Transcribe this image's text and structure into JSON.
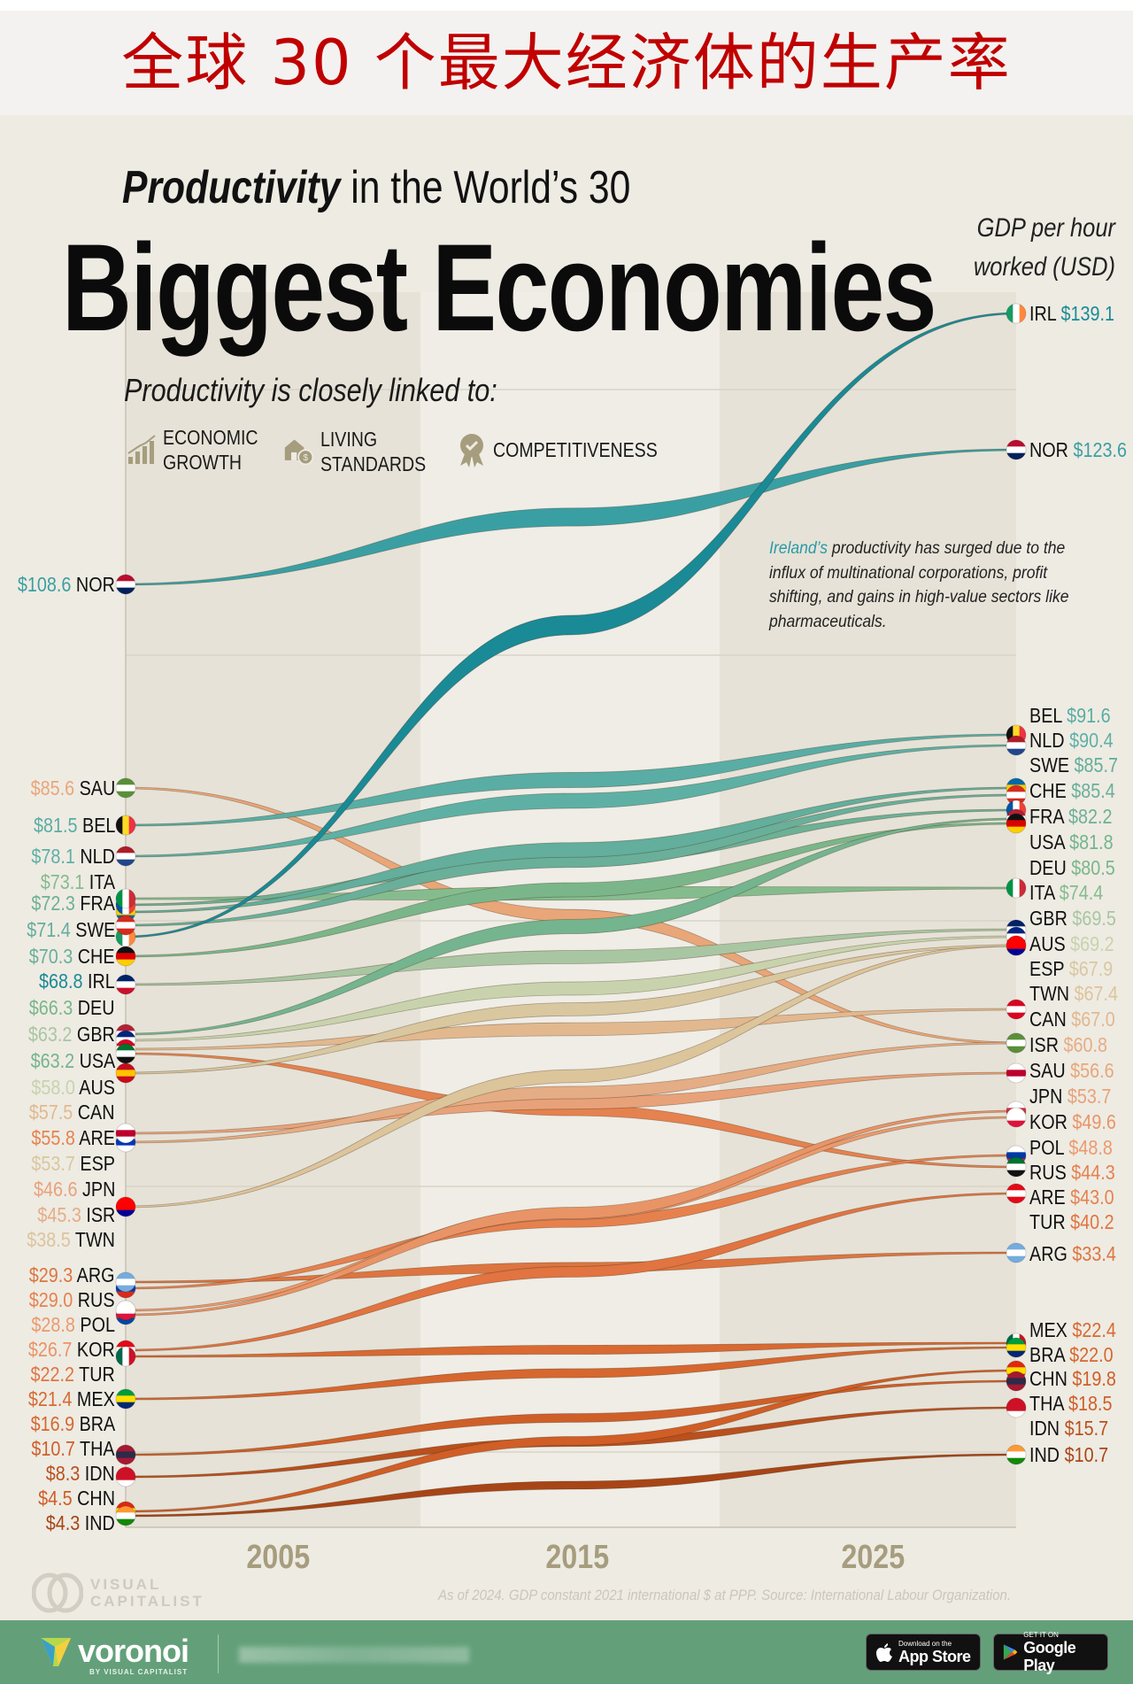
{
  "banner": {
    "title": "全球 30 个最大经济体的生产率"
  },
  "header": {
    "subtitle_bold": "Productivity",
    "subtitle_rest": " in the World’s 30",
    "title": "Biggest Economies",
    "unit_line1": "GDP per hour",
    "unit_line2": "worked (USD)",
    "linked_to": "Productivity is closely linked to:",
    "legend": [
      {
        "icon": "bar-chart-growth-icon",
        "label": "ECONOMIC\nGROWTH"
      },
      {
        "icon": "house-coin-icon",
        "label": "LIVING\nSTANDARDS"
      },
      {
        "icon": "award-badge-icon",
        "label": "COMPETITIVENESS"
      }
    ]
  },
  "annotation": {
    "highlight": "Ireland’s",
    "text": " productivity has surged due to the influx of multinational corporations, profit shifting, and gains in high-value sectors like pharmaceuticals."
  },
  "footer": {
    "brand": "VISUAL\nCAPITALIST",
    "source": "As of 2024. GDP constant 2021 international $ at PPP. Source: International Labour Organization.",
    "voronoi": "voronoi",
    "voronoi_by": "BY VISUAL CAPITALIST",
    "appstore_small": "Download on the",
    "appstore_big": "App Store",
    "googleplay_small": "GET IT ON",
    "googleplay_big": "Google Play"
  },
  "chart_data": {
    "type": "line",
    "subtype": "bump-ribbon",
    "title": "Productivity in the World’s 30 Biggest Economies",
    "ylabel": "GDP per hour worked (USD)",
    "x_ticks": [
      "2005",
      "2015",
      "2025"
    ],
    "start_year": 2000,
    "end_year": 2024,
    "series": [
      {
        "code": "IRL",
        "start": 68.8,
        "end": 139.1,
        "color": "#1a8a96"
      },
      {
        "code": "NOR",
        "start": 108.6,
        "end": 123.6,
        "color": "#3a9fa3"
      },
      {
        "code": "BEL",
        "start": 81.5,
        "end": 91.6,
        "color": "#59ada4"
      },
      {
        "code": "NLD",
        "start": 78.1,
        "end": 90.4,
        "color": "#5eb0a5"
      },
      {
        "code": "SWE",
        "start": 71.4,
        "end": 85.7,
        "color": "#63ae9c"
      },
      {
        "code": "CHE",
        "start": 70.3,
        "end": 85.4,
        "color": "#6aaf9a"
      },
      {
        "code": "FRA",
        "start": 72.3,
        "end": 82.2,
        "color": "#6db095"
      },
      {
        "code": "USA",
        "start": 63.2,
        "end": 81.8,
        "color": "#74b48e"
      },
      {
        "code": "DEU",
        "start": 66.3,
        "end": 80.5,
        "color": "#7ab68a"
      },
      {
        "code": "ITA",
        "start": 73.1,
        "end": 74.4,
        "color": "#85bc8e"
      },
      {
        "code": "GBR",
        "start": 63.2,
        "end": 69.5,
        "color": "#a9c6a2"
      },
      {
        "code": "AUS",
        "start": 58.0,
        "end": 69.2,
        "color": "#c8d3ad"
      },
      {
        "code": "ESP",
        "start": 53.7,
        "end": 67.9,
        "color": "#d9c7a0"
      },
      {
        "code": "TWN",
        "start": 38.5,
        "end": 67.4,
        "color": "#dcc49b"
      },
      {
        "code": "CAN",
        "start": 57.5,
        "end": 67.0,
        "color": "#e2b88f"
      },
      {
        "code": "ISR",
        "start": 45.3,
        "end": 60.8,
        "color": "#e5ad85"
      },
      {
        "code": "SAU",
        "start": 85.6,
        "end": 56.6,
        "color": "#e9a678"
      },
      {
        "code": "JPN",
        "start": 46.6,
        "end": 53.7,
        "color": "#e8a27a"
      },
      {
        "code": "KOR",
        "start": 26.7,
        "end": 49.6,
        "color": "#e99466"
      },
      {
        "code": "POL",
        "start": 28.8,
        "end": 48.8,
        "color": "#eb9a6e"
      },
      {
        "code": "RUS",
        "start": 29.0,
        "end": 44.3,
        "color": "#e6814e"
      },
      {
        "code": "ARE",
        "start": 55.8,
        "end": 43.0,
        "color": "#e5824f"
      },
      {
        "code": "TUR",
        "start": 22.2,
        "end": 40.2,
        "color": "#e17440"
      },
      {
        "code": "ARG",
        "start": 29.3,
        "end": 33.4,
        "color": "#dd7540"
      },
      {
        "code": "MEX",
        "start": 21.4,
        "end": 22.4,
        "color": "#d86a32"
      },
      {
        "code": "BRA",
        "start": 16.9,
        "end": 22.0,
        "color": "#d6672f"
      },
      {
        "code": "CHN",
        "start": 4.5,
        "end": 19.8,
        "color": "#d05e26"
      },
      {
        "code": "THA",
        "start": 10.7,
        "end": 18.5,
        "color": "#cf5f28"
      },
      {
        "code": "IDN",
        "start": 8.3,
        "end": 15.7,
        "color": "#b9501d"
      },
      {
        "code": "IND",
        "start": 4.3,
        "end": 10.7,
        "color": "#a84516"
      }
    ],
    "left_labels_order": [
      "NOR",
      "SAU",
      "BEL",
      "NLD",
      "ITA",
      "FRA",
      "SWE",
      "CHE",
      "IRL",
      "DEU",
      "GBR",
      "USA",
      "AUS",
      "CAN",
      "ARE",
      "ESP",
      "JPN",
      "ISR",
      "TWN",
      "ARG",
      "RUS",
      "POL",
      "KOR",
      "TUR",
      "MEX",
      "BRA",
      "THA",
      "IDN",
      "CHN",
      "IND"
    ],
    "right_labels_order": [
      "IRL",
      "NOR",
      "BEL",
      "NLD",
      "SWE",
      "CHE",
      "FRA",
      "USA",
      "DEU",
      "ITA",
      "GBR",
      "AUS",
      "ESP",
      "TWN",
      "CAN",
      "ISR",
      "SAU",
      "JPN",
      "KOR",
      "POL",
      "RUS",
      "ARE",
      "TUR",
      "ARG",
      "MEX",
      "BRA",
      "CHN",
      "THA",
      "IDN",
      "IND"
    ],
    "flags": {
      "IRL": [
        "#169b62",
        "#fff",
        "#ff883e"
      ],
      "NOR": [
        "#ba0c2f",
        "#fff",
        "#00205b"
      ],
      "BEL": [
        "#111",
        "#fdda24",
        "#ef3340"
      ],
      "NLD": [
        "#ae1c28",
        "#fff",
        "#21468b"
      ],
      "SWE": [
        "#006aa7",
        "#fecc00",
        "#006aa7"
      ],
      "CHE": [
        "#d52b1e",
        "#fff",
        "#d52b1e"
      ],
      "FRA": [
        "#0055a4",
        "#fff",
        "#ef4135"
      ],
      "USA": [
        "#b22234",
        "#fff",
        "#3c3b6e"
      ],
      "DEU": [
        "#111",
        "#dd0000",
        "#ffce00"
      ],
      "ITA": [
        "#009246",
        "#fff",
        "#ce2b37"
      ],
      "GBR": [
        "#012169",
        "#fff",
        "#c8102e"
      ],
      "AUS": [
        "#00247d",
        "#fff",
        "#cc0000"
      ],
      "ESP": [
        "#c60b1e",
        "#ffc400",
        "#c60b1e"
      ],
      "TWN": [
        "#fe0000",
        "#fe0000",
        "#000095"
      ],
      "CAN": [
        "#d80621",
        "#fff",
        "#d80621"
      ],
      "ISR": [
        "#fff",
        "#0038b8",
        "#fff"
      ],
      "SAU": [
        "#5a8f3a",
        "#fff",
        "#5a8f3a"
      ],
      "JPN": [
        "#fff",
        "#bc002d",
        "#fff"
      ],
      "KOR": [
        "#fff",
        "#cd2e3a",
        "#0047a0"
      ],
      "POL": [
        "#fff",
        "#fff",
        "#dc143c"
      ],
      "RUS": [
        "#fff",
        "#0039a6",
        "#d52b1e"
      ],
      "ARE": [
        "#00732f",
        "#fff",
        "#111"
      ],
      "TUR": [
        "#e30a17",
        "#fff",
        "#e30a17"
      ],
      "ARG": [
        "#74acdf",
        "#fff",
        "#74acdf"
      ],
      "MEX": [
        "#006847",
        "#fff",
        "#ce1126"
      ],
      "BRA": [
        "#009c3b",
        "#ffdf00",
        "#002776"
      ],
      "CHN": [
        "#de2910",
        "#ffde00",
        "#de2910"
      ],
      "THA": [
        "#a51931",
        "#2d2a4a",
        "#a51931"
      ],
      "IDN": [
        "#ce1126",
        "#ce1126",
        "#fff"
      ],
      "IND": [
        "#ff9933",
        "#fff",
        "#138808"
      ]
    }
  }
}
